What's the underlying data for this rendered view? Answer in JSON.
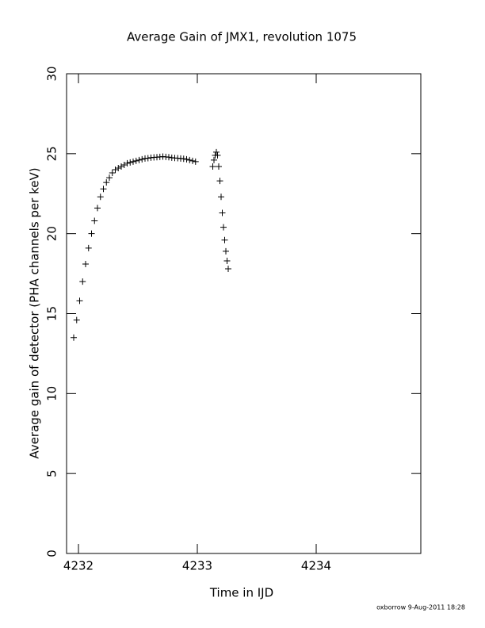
{
  "chart_data": {
    "type": "scatter",
    "title": "Average Gain of JMX1, revolution 1075",
    "x_label": "Time in IJD",
    "y_label": "Average gain of detector (PHA channels per keV)",
    "footer": "oxborrow  9-Aug-2011 18:28",
    "marker": "+",
    "x": [
      4231.96,
      4231.985,
      4232.01,
      4232.035,
      4232.06,
      4232.085,
      4232.11,
      4232.135,
      4232.16,
      4232.185,
      4232.21,
      4232.235,
      4232.26,
      4232.285,
      4232.31,
      4232.335,
      4232.36,
      4232.385,
      4232.41,
      4232.435,
      4232.46,
      4232.485,
      4232.51,
      4232.535,
      4232.56,
      4232.585,
      4232.61,
      4232.635,
      4232.66,
      4232.685,
      4232.71,
      4232.735,
      4232.76,
      4232.785,
      4232.81,
      4232.835,
      4232.86,
      4232.885,
      4232.91,
      4232.935,
      4232.96,
      4232.985,
      4233.13,
      4233.14,
      4233.15,
      4233.16,
      4233.17,
      4233.18,
      4233.19,
      4233.2,
      4233.21,
      4233.22,
      4233.23,
      4233.24,
      4233.25,
      4233.26
    ],
    "series": [
      {
        "color": "#000000",
        "values": [
          13.5,
          14.6,
          15.8,
          17.0,
          18.1,
          19.1,
          20.0,
          20.8,
          21.6,
          22.3,
          22.8,
          23.2,
          23.5,
          23.8,
          24.0,
          24.1,
          24.2,
          24.3,
          24.4,
          24.45,
          24.5,
          24.55,
          24.6,
          24.65,
          24.7,
          24.72,
          24.75,
          24.77,
          24.78,
          24.8,
          24.82,
          24.8,
          24.78,
          24.75,
          24.73,
          24.72,
          24.7,
          24.68,
          24.65,
          24.6,
          24.55,
          24.5,
          24.2,
          24.6,
          24.9,
          25.1,
          24.9,
          24.2,
          23.3,
          22.3,
          21.3,
          20.4,
          19.6,
          18.9,
          18.3,
          17.8
        ]
      }
    ],
    "xlim": [
      4231.9,
      4234.88
    ],
    "xticks": [
      4232,
      4233,
      4234
    ],
    "ylim": [
      0,
      30
    ],
    "yticks": [
      0,
      5,
      10,
      15,
      20,
      25,
      30
    ]
  }
}
